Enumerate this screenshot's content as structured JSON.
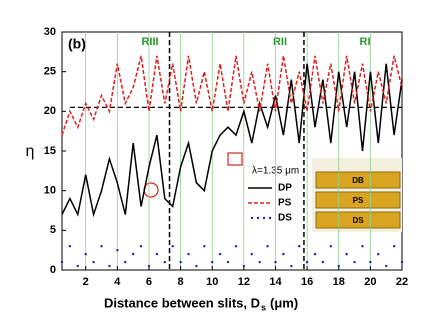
{
  "chart_data": {
    "type": "line",
    "panel_label": "(b)",
    "x_label": "Distance between slits, D",
    "x_label_sub": "s",
    "x_label_unit": "(μm)",
    "y_label": "η",
    "annotation": "λ=1.35 μm",
    "regions": [
      "RIII",
      "RII",
      "RI"
    ],
    "inset_layers": [
      "DB",
      "PS",
      "DS"
    ],
    "x": [
      0.5,
      1,
      1.5,
      2,
      2.5,
      3,
      3.5,
      4,
      4.5,
      5,
      5.5,
      6,
      6.5,
      7,
      7.5,
      8,
      8.5,
      9,
      9.5,
      10,
      10.5,
      11,
      11.5,
      12,
      12.5,
      13,
      13.5,
      14,
      14.5,
      15,
      15.5,
      16,
      16.5,
      17,
      17.5,
      18,
      18.5,
      19,
      19.5,
      20,
      20.5,
      21,
      21.5,
      22
    ],
    "series": [
      {
        "name": "DP",
        "color": "#000000",
        "style": "solid",
        "values": [
          7,
          9,
          7,
          12,
          7,
          10,
          14,
          11,
          7,
          16,
          8,
          13,
          17,
          9,
          8,
          13,
          16,
          11,
          10,
          15,
          17,
          18,
          17,
          20,
          16,
          21,
          18,
          22,
          17,
          24,
          16,
          26,
          18,
          24,
          16,
          25,
          18,
          25,
          15,
          25,
          16,
          26,
          17,
          24
        ]
      },
      {
        "name": "PS",
        "color": "#e02020",
        "style": "dashed",
        "values": [
          17,
          20,
          18,
          21,
          19,
          22,
          20,
          26,
          21,
          23,
          27,
          20,
          27,
          21,
          26,
          20,
          27,
          21,
          25,
          20,
          26,
          20,
          27,
          21,
          25,
          20,
          26,
          20,
          27,
          21,
          25,
          20,
          27,
          21,
          26,
          20,
          27,
          21,
          26,
          20,
          25,
          21,
          27,
          23
        ]
      },
      {
        "name": "DS",
        "color": "#2020c0",
        "style": "dots",
        "values": [
          1,
          3,
          0.5,
          2,
          1,
          3,
          0.5,
          2.5,
          1,
          2,
          3,
          0.5,
          2,
          1,
          3,
          1,
          2,
          0.5,
          3,
          1,
          2,
          1,
          3,
          0.5,
          2,
          1,
          3,
          1,
          2,
          0.5,
          3,
          1,
          2,
          1,
          3,
          0.5,
          2,
          1,
          3,
          1,
          2,
          0.5,
          3,
          1
        ]
      }
    ],
    "green_lines": [
      2,
      4,
      6,
      8,
      10,
      12,
      14,
      16,
      18,
      20
    ],
    "dashed_vlines": [
      7.3,
      15.8
    ],
    "dashed_hline": 20.5,
    "xlim": [
      0.5,
      22
    ],
    "ylim": [
      0,
      30
    ],
    "xticks": [
      2,
      4,
      6,
      8,
      10,
      12,
      14,
      16,
      18,
      20,
      22
    ],
    "yticks": [
      0,
      5,
      10,
      15,
      20,
      25,
      30
    ]
  }
}
